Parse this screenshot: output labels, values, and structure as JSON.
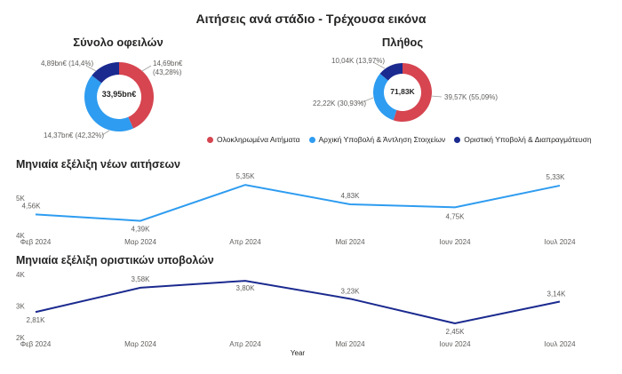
{
  "title": "Αιτήσεις ανά στάδιο - Τρέχουσα εικόνα",
  "colors": {
    "completed": "#D64550",
    "initial": "#2E9CF0",
    "final": "#1B2A8F",
    "line_new": "#2E9CF0",
    "line_final": "#1B2A8F"
  },
  "chart_data": [
    {
      "type": "pie",
      "title": "Σύνολο οφειλών",
      "center_label": "33,95bn€",
      "labels": [
        "Ολοκληρωμένα Αιτήματα",
        "Αρχική Υποβολή & Άντληση Στοιχείων",
        "Οριστική Υποβολή & Διαπραγμάτευση"
      ],
      "values": [
        14.69,
        14.37,
        4.89
      ],
      "slice_labels": [
        "14,69bn€ (43,28%)",
        "14,37bn€ (42,32%)",
        "4,89bn€ (14,4%)"
      ]
    },
    {
      "type": "pie",
      "title": "Πλήθος",
      "center_label": "71,83K",
      "labels": [
        "Ολοκληρωμένα Αιτήματα",
        "Αρχική Υποβολή & Άντληση Στοιχείων",
        "Οριστική Υποβολή & Διαπραγμάτευση"
      ],
      "values": [
        39.57,
        22.22,
        10.04
      ],
      "slice_labels": [
        "39,57K (55,09%)",
        "22,22K (30,93%)",
        "10,04K (13,97%)"
      ]
    },
    {
      "type": "line",
      "title": "Μηνιαία εξέλιξη νέων αιτήσεων",
      "categories": [
        "Φεβ 2024",
        "Μαρ 2024",
        "Απρ 2024",
        "Μαϊ 2024",
        "Ιουν 2024",
        "Ιουλ 2024"
      ],
      "values": [
        4.56,
        4.39,
        5.35,
        4.83,
        4.75,
        5.33
      ],
      "data_labels": [
        "4,56K",
        "4,39K",
        "5,35K",
        "4,83K",
        "4,75K",
        "5,33K"
      ],
      "yticks": [
        "4K",
        "5K"
      ],
      "ylim": [
        4.0,
        5.4
      ]
    },
    {
      "type": "line",
      "title": "Μηνιαία εξέλιξη οριστικών υποβολών",
      "categories": [
        "Φεβ 2024",
        "Μαρ 2024",
        "Απρ 2024",
        "Μαϊ 2024",
        "Ιουν 2024",
        "Ιουλ 2024"
      ],
      "values": [
        2.81,
        3.58,
        3.8,
        3.23,
        2.45,
        3.14
      ],
      "data_labels": [
        "2,81K",
        "3,58K",
        "3,80K",
        "3,23K",
        "2,45K",
        "3,14K"
      ],
      "yticks": [
        "2K",
        "3K",
        "4K"
      ],
      "ylim": [
        2.0,
        4.0
      ],
      "xlabel": "Year"
    }
  ]
}
